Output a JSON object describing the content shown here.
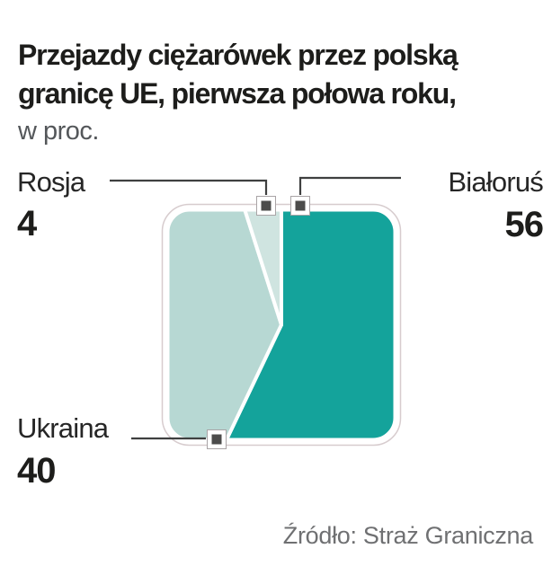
{
  "header": {
    "title_line1": "Przejazdy ciężarówek przez polską",
    "title_line2": "granicę UE, pierwsza połowa roku,",
    "unit": "w proc."
  },
  "chart_data": {
    "type": "pie",
    "variant": "rounded-square-pie",
    "title": "Przejazdy ciężarówek przez polską granicę UE, pierwsza połowa roku, w proc.",
    "unit": "proc.",
    "start": "top-center",
    "direction": "clockwise",
    "slices": [
      {
        "label": "Białoruś",
        "value": 56,
        "color": "#14a39b"
      },
      {
        "label": "Ukraina",
        "value": 40,
        "color": "#b7d8d3"
      },
      {
        "label": "Rosja",
        "value": 4,
        "color": "#cfe4e0"
      }
    ],
    "source": "Źródło: Straż Graniczna",
    "colors": {
      "divider": "#ffffff",
      "outline": "#d7ccce",
      "marker_fill": "#4c4c4b",
      "marker_ring": "#ffffff",
      "marker_edge": "#a9a4a6",
      "connector": "#3f4040"
    }
  }
}
